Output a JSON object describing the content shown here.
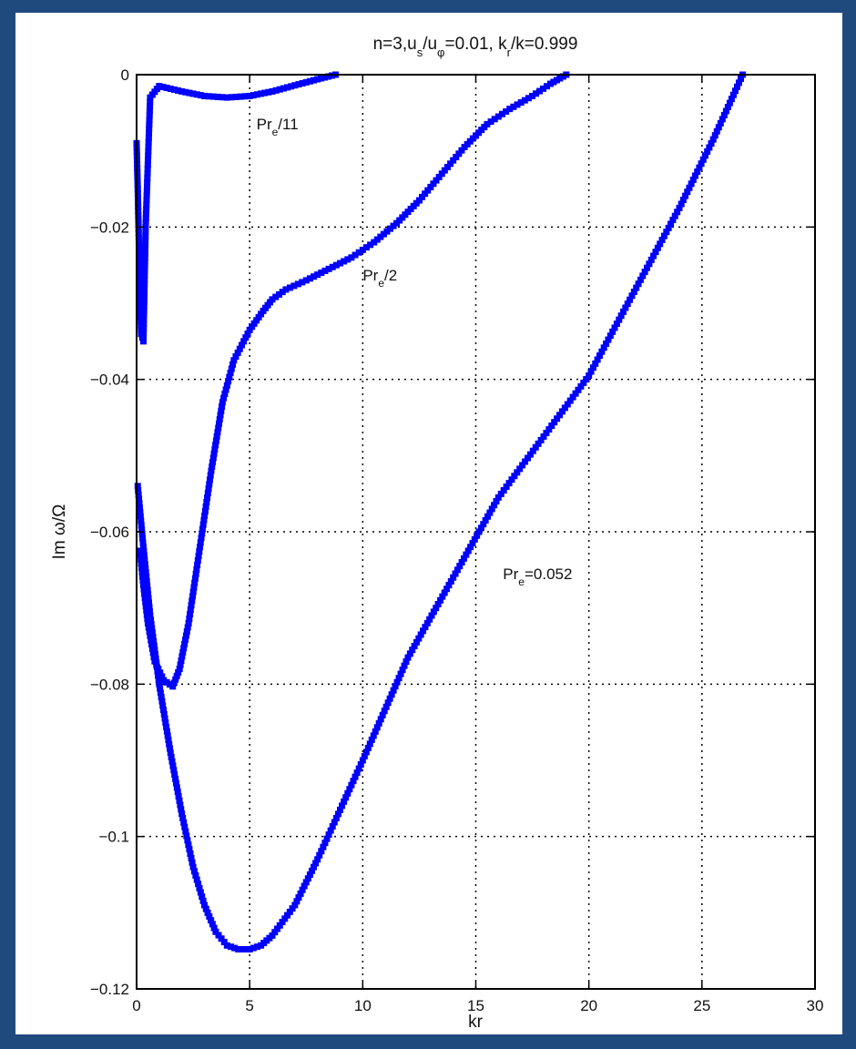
{
  "chart_data": {
    "type": "scatter",
    "title": "n=3,u_s/u_φ=0.01, k_r/k=0.999",
    "xlabel": "kr",
    "ylabel": "Im ω/Ω",
    "xlim": [
      0,
      30
    ],
    "ylim": [
      -0.12,
      0
    ],
    "xticks": [
      0,
      5,
      10,
      15,
      20,
      25,
      30
    ],
    "xtick_labels": [
      "0",
      "5",
      "10",
      "15",
      "20",
      "25",
      "30"
    ],
    "yticks": [
      0,
      -0.02,
      -0.04,
      -0.06,
      -0.08,
      -0.1,
      -0.12
    ],
    "ytick_labels": [
      "0",
      "−0.02",
      "−0.04",
      "−0.06",
      "−0.08",
      "−0.1",
      "−0.12"
    ],
    "grid": true,
    "marker_color": "#0000ff",
    "series": [
      {
        "name": "Pr_e/11",
        "x": [
          0.0,
          0.05,
          0.1,
          0.15,
          0.2,
          0.3,
          0.4,
          0.6,
          1.0,
          2.0,
          3.0,
          4.0,
          5.0,
          6.0,
          7.0,
          8.0,
          8.8
        ],
        "y": [
          -0.009,
          -0.015,
          -0.022,
          -0.028,
          -0.034,
          -0.035,
          -0.02,
          -0.003,
          -0.0015,
          -0.0022,
          -0.0028,
          -0.003,
          -0.0028,
          -0.0022,
          -0.0014,
          -0.0006,
          0.0
        ]
      },
      {
        "name": "Pr_e/2",
        "x": [
          0.15,
          0.3,
          0.5,
          0.8,
          1.2,
          1.6,
          1.9,
          2.3,
          2.8,
          3.3,
          3.8,
          4.3,
          5.0,
          5.6,
          6.0,
          6.6,
          7.5,
          8.5,
          9.5,
          10.5,
          11.5,
          12.5,
          13.5,
          14.5,
          15.5,
          16.5,
          17.5,
          18.3,
          19.0
        ],
        "y": [
          -0.0625,
          -0.067,
          -0.072,
          -0.077,
          -0.0795,
          -0.0803,
          -0.078,
          -0.072,
          -0.062,
          -0.052,
          -0.043,
          -0.0375,
          -0.0335,
          -0.031,
          -0.0295,
          -0.0282,
          -0.027,
          -0.0255,
          -0.024,
          -0.022,
          -0.0195,
          -0.0165,
          -0.013,
          -0.0095,
          -0.0065,
          -0.0045,
          -0.0028,
          -0.0012,
          0.0
        ]
      },
      {
        "name": "Pr_e=0.052",
        "x": [
          0.05,
          0.3,
          0.6,
          1.0,
          1.5,
          2.0,
          2.5,
          3.0,
          3.5,
          4.0,
          4.5,
          5.0,
          5.5,
          6.0,
          7.0,
          8.0,
          9.0,
          10.0,
          12.0,
          14.0,
          16.0,
          18.0,
          20.0,
          22.0,
          24.0,
          25.5,
          26.8
        ],
        "y": [
          -0.054,
          -0.062,
          -0.071,
          -0.08,
          -0.089,
          -0.097,
          -0.104,
          -0.109,
          -0.1125,
          -0.1143,
          -0.1148,
          -0.1148,
          -0.1143,
          -0.113,
          -0.109,
          -0.103,
          -0.0965,
          -0.09,
          -0.0765,
          -0.066,
          -0.0555,
          -0.0475,
          -0.0395,
          -0.0285,
          -0.0175,
          -0.0085,
          0.0
        ]
      }
    ],
    "annotations": [
      {
        "base": "Pr",
        "sub": "e",
        "rest": "/11",
        "x": 5.3,
        "y": -0.0072
      },
      {
        "base": "Pr",
        "sub": "e",
        "rest": "/2",
        "x": 10.0,
        "y": -0.027
      },
      {
        "base": "Pr",
        "sub": "e",
        "rest": "=0.052",
        "x": 16.2,
        "y": -0.0662
      }
    ]
  }
}
